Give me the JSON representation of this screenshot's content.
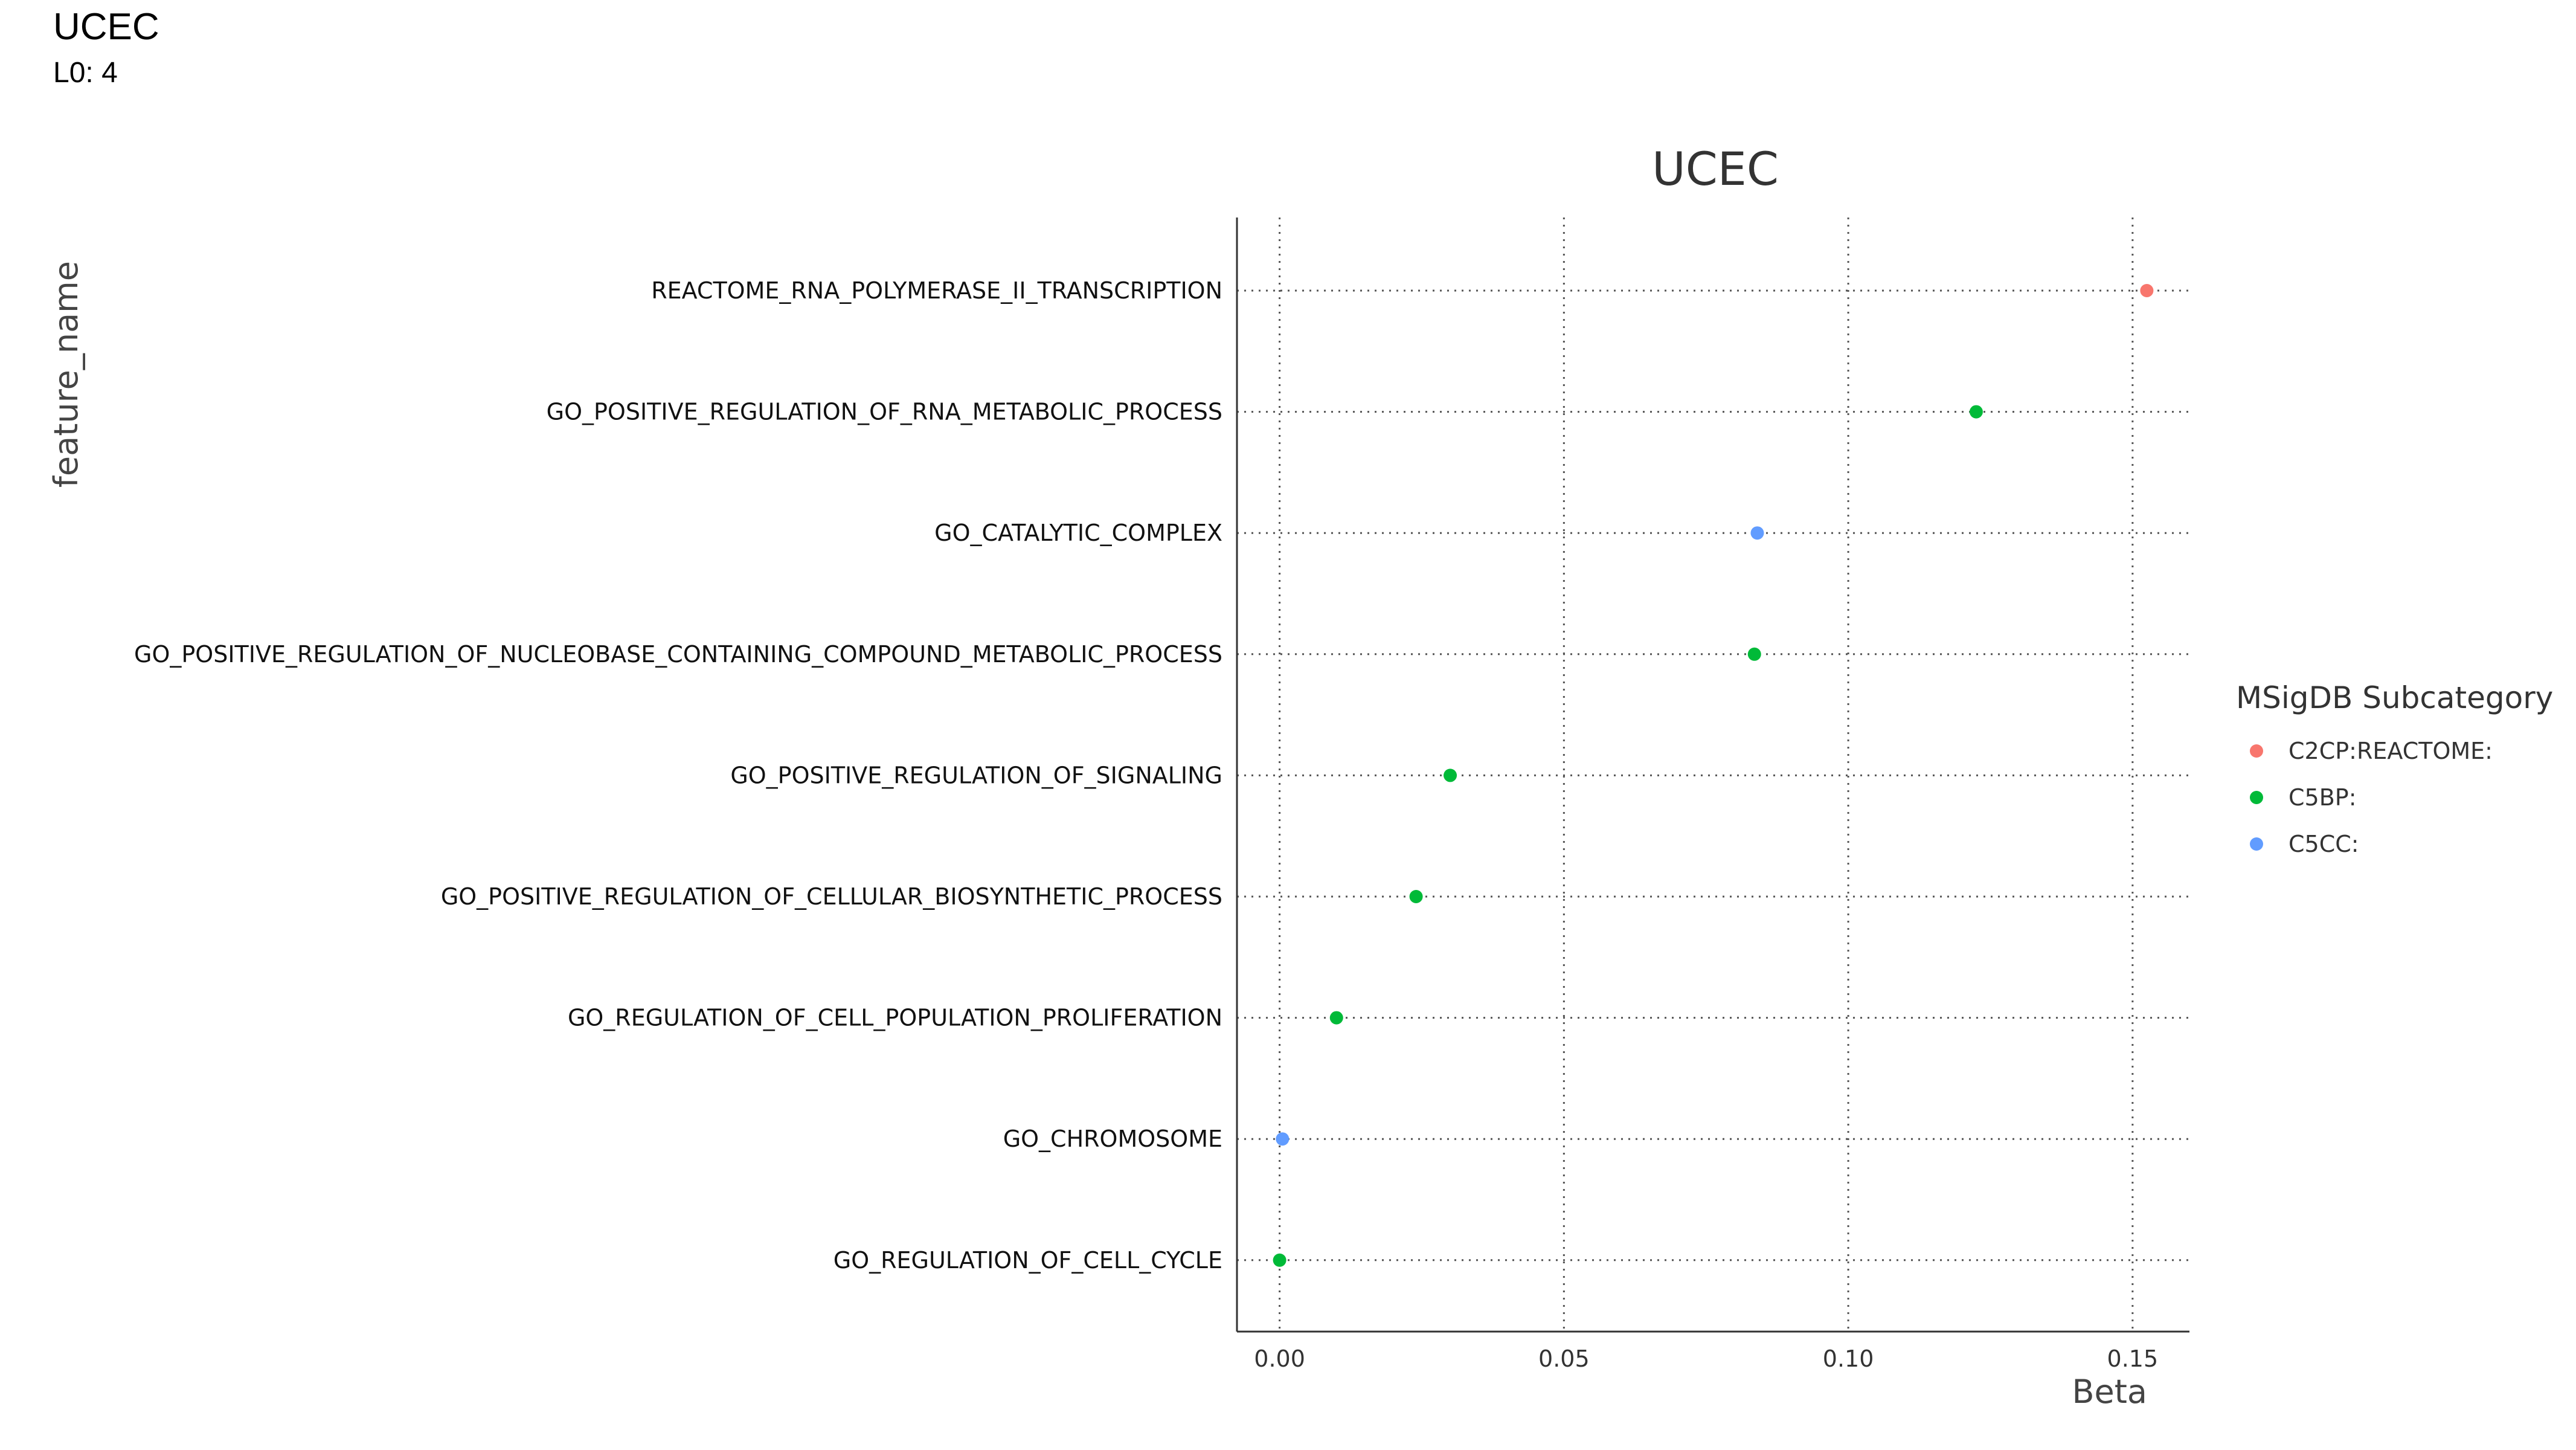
{
  "header": {
    "title": "UCEC",
    "subtitle": "L0: 4"
  },
  "chart_data": {
    "type": "scatter",
    "title": "UCEC",
    "xlabel": "Beta",
    "ylabel": "feature_name",
    "xlim": [
      -0.0075,
      0.16
    ],
    "x_ticks": [
      0.0,
      0.05,
      0.1,
      0.15
    ],
    "x_tick_labels": [
      "0.00",
      "0.05",
      "0.10",
      "0.15"
    ],
    "grid": true,
    "grid_style": "dotted",
    "legend": {
      "title": "MSigDB Subcategory",
      "placement": "right",
      "entries": [
        {
          "label": "C2CP:REACTOME:",
          "color": "#F8766D"
        },
        {
          "label": "C5BP:",
          "color": "#00BA38"
        },
        {
          "label": "C5CC:",
          "color": "#619CFF"
        }
      ]
    },
    "points": [
      {
        "feature": "REACTOME_RNA_POLYMERASE_II_TRANSCRIPTION",
        "beta": 0.1525,
        "group": "C2CP:REACTOME:"
      },
      {
        "feature": "GO_POSITIVE_REGULATION_OF_RNA_METABOLIC_PROCESS",
        "beta": 0.1225,
        "group": "C5BP:"
      },
      {
        "feature": "GO_CATALYTIC_COMPLEX",
        "beta": 0.084,
        "group": "C5CC:"
      },
      {
        "feature": "GO_POSITIVE_REGULATION_OF_NUCLEOBASE_CONTAINING_COMPOUND_METABOLIC_PROCESS",
        "beta": 0.0835,
        "group": "C5BP:"
      },
      {
        "feature": "GO_POSITIVE_REGULATION_OF_SIGNALING",
        "beta": 0.03,
        "group": "C5BP:"
      },
      {
        "feature": "GO_POSITIVE_REGULATION_OF_CELLULAR_BIOSYNTHETIC_PROCESS",
        "beta": 0.024,
        "group": "C5BP:"
      },
      {
        "feature": "GO_REGULATION_OF_CELL_POPULATION_PROLIFERATION",
        "beta": 0.01,
        "group": "C5BP:"
      },
      {
        "feature": "GO_CHROMOSOME",
        "beta": 0.0005,
        "group": "C5CC:"
      },
      {
        "feature": "GO_REGULATION_OF_CELL_CYCLE",
        "beta": 0.0,
        "group": "C5BP:"
      }
    ]
  }
}
